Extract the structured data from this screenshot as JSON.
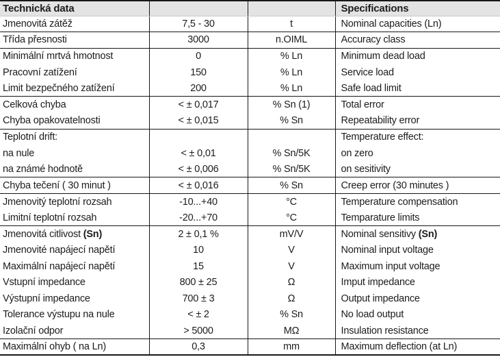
{
  "colors": {
    "header_bg": "#e3e3e3",
    "border": "#161616",
    "text": "#1c1c1c"
  },
  "table": {
    "header": {
      "left_title": "Technická data",
      "right_title": "Specifications"
    },
    "columns": [
      "czech-label",
      "value",
      "unit",
      "english-label"
    ],
    "rows": [
      {
        "cz": "Jmenovitá zátěž",
        "cz_bold": "",
        "value": "7,5 - 30",
        "unit": "t",
        "en": "Nominal capacities (Ln)",
        "en_bold": "",
        "divider_after": true
      },
      {
        "cz": "Třída přesnosti",
        "cz_bold": "",
        "value": "3000",
        "unit": "n.OIML",
        "en": "Accuracy class",
        "en_bold": "",
        "divider_after": true
      },
      {
        "cz": "Minimální mrtvá hmotnost",
        "cz_bold": "",
        "value": "0",
        "unit": "% Ln",
        "en": "Minimum dead load",
        "en_bold": "",
        "divider_after": false
      },
      {
        "cz": "Pracovní zatížení",
        "cz_bold": "",
        "value": "150",
        "unit": "% Ln",
        "en": "Service load",
        "en_bold": "",
        "divider_after": false
      },
      {
        "cz": "Limit bezpečného zatížení",
        "cz_bold": "",
        "value": "200",
        "unit": "% Ln",
        "en": "Safe load limit",
        "en_bold": "",
        "divider_after": true
      },
      {
        "cz": "Celková chyba",
        "cz_bold": "",
        "value": "< ± 0,017",
        "unit": "% Sn (1)",
        "en": "Total error",
        "en_bold": "",
        "divider_after": false
      },
      {
        "cz": "Chyba opakovatelnosti",
        "cz_bold": "",
        "value": "< ± 0,015",
        "unit": "% Sn",
        "en": "Repeatability error",
        "en_bold": "",
        "divider_after": true
      },
      {
        "cz": "Teplotní drift:",
        "cz_bold": "",
        "value": "",
        "unit": "",
        "en": "Temperature effect:",
        "en_bold": "",
        "divider_after": false
      },
      {
        "cz": "na nule",
        "cz_bold": "",
        "value": "< ± 0,01",
        "unit": "% Sn/5K",
        "en": "on zero",
        "en_bold": "",
        "divider_after": false
      },
      {
        "cz": "na známé hodnotě",
        "cz_bold": "",
        "value": "< ± 0,006",
        "unit": "% Sn/5K",
        "en": "on sesitivity",
        "en_bold": "",
        "divider_after": true
      },
      {
        "cz": "Chyba tečení ( 30 minut )",
        "cz_bold": "",
        "value": "< ± 0,016",
        "unit": "% Sn",
        "en": "Creep error (30 minutes )",
        "en_bold": "",
        "divider_after": true
      },
      {
        "cz": "Jmenovitý teplotní rozsah",
        "cz_bold": "",
        "value": "-10...+40",
        "unit": "°C",
        "en": "Temperature compensation",
        "en_bold": "",
        "divider_after": false
      },
      {
        "cz": "Limitní teplotní rozsah",
        "cz_bold": "",
        "value": "-20...+70",
        "unit": "°C",
        "en": "Temparature limits",
        "en_bold": "",
        "divider_after": true
      },
      {
        "cz": "Jmenovitá citlivost ",
        "cz_bold": "(Sn)",
        "value": "2 ± 0,1 %",
        "unit": "mV/V",
        "en": "Nominal sensitivy ",
        "en_bold": "(Sn)",
        "divider_after": false
      },
      {
        "cz": "Jmenovité napájecí napětí",
        "cz_bold": "",
        "value": "10",
        "unit": "V",
        "en": "Nominal input voltage",
        "en_bold": "",
        "divider_after": false
      },
      {
        "cz": "Maximální napájecí napětí",
        "cz_bold": "",
        "value": "15",
        "unit": "V",
        "en": "Maximum input voltage",
        "en_bold": "",
        "divider_after": false
      },
      {
        "cz": "Vstupní impedance",
        "cz_bold": "",
        "value": "800 ± 25",
        "unit": "Ω",
        "en": "Imput impedance",
        "en_bold": "",
        "divider_after": false
      },
      {
        "cz": "Výstupní impedance",
        "cz_bold": "",
        "value": "700 ± 3",
        "unit": "Ω",
        "en": "Output impedance",
        "en_bold": "",
        "divider_after": false
      },
      {
        "cz": "Tolerance výstupu na nule",
        "cz_bold": "",
        "value": "< ± 2",
        "unit": "% Sn",
        "en": "No load output",
        "en_bold": "",
        "divider_after": false
      },
      {
        "cz": "Izolační odpor",
        "cz_bold": "",
        "value": "> 5000",
        "unit": "MΩ",
        "en": "Insulation resistance",
        "en_bold": "",
        "divider_after": true
      },
      {
        "cz": "Maximální ohyb ( na Ln)",
        "cz_bold": "",
        "value": "0,3",
        "unit": "mm",
        "en": "Maximum deflection (at Ln)",
        "en_bold": "",
        "divider_after": false
      }
    ]
  }
}
